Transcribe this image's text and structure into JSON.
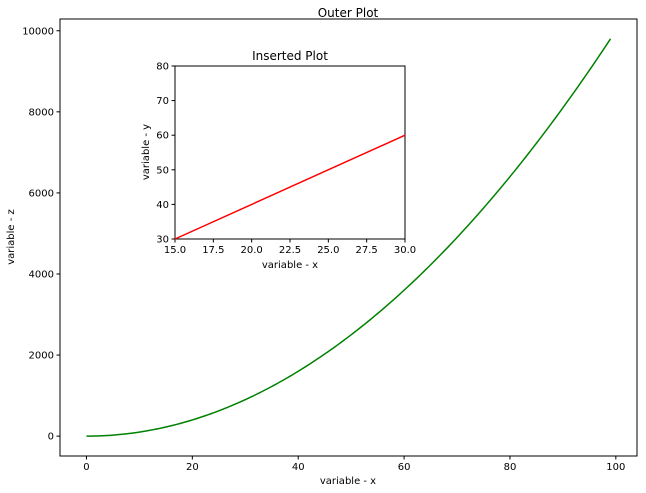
{
  "chart_data": [
    {
      "type": "line",
      "title": "Outer Plot",
      "xlabel": "variable - x",
      "ylabel": "variable - z",
      "xlim": [
        -5,
        104
      ],
      "ylim": [
        -490,
        10290
      ],
      "xticks": [
        0,
        20,
        40,
        60,
        80,
        100
      ],
      "xtick_labels": [
        "0",
        "20",
        "40",
        "60",
        "80",
        "100"
      ],
      "yticks": [
        0,
        2000,
        4000,
        6000,
        8000,
        10000
      ],
      "ytick_labels": [
        "0",
        "2000",
        "4000",
        "6000",
        "8000",
        "10000"
      ],
      "grid": false,
      "series": [
        {
          "x_range": [
            0,
            99
          ],
          "function": "x^2",
          "color": "#008000"
        }
      ]
    },
    {
      "type": "line",
      "title": "Inserted Plot",
      "xlabel": "variable - x",
      "ylabel": "variable - y",
      "xlim": [
        15,
        30
      ],
      "ylim": [
        30,
        80
      ],
      "xticks": [
        15,
        17.5,
        20,
        22.5,
        25,
        27.5,
        30
      ],
      "xtick_labels": [
        "15.0",
        "17.5",
        "20.0",
        "22.5",
        "25.0",
        "27.5",
        "30.0"
      ],
      "yticks": [
        30,
        40,
        50,
        60,
        70,
        80
      ],
      "ytick_labels": [
        "30",
        "40",
        "50",
        "60",
        "70",
        "80"
      ],
      "grid": false,
      "series": [
        {
          "x": [
            15,
            30
          ],
          "y": [
            30,
            60
          ],
          "color": "#ff0000"
        }
      ]
    }
  ]
}
